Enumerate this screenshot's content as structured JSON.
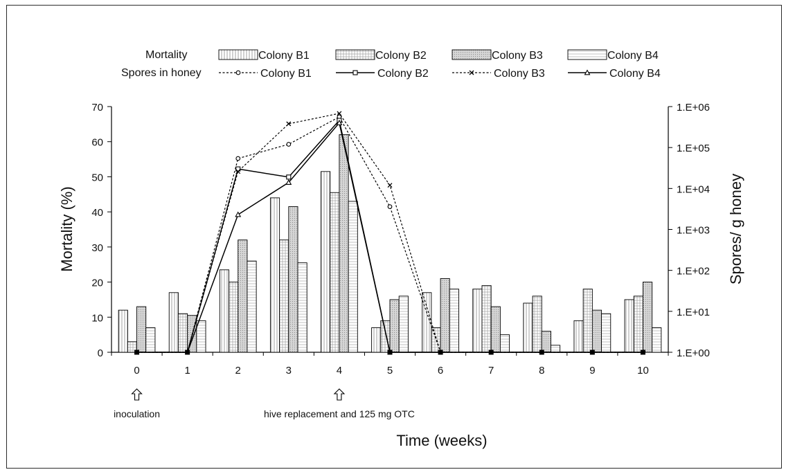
{
  "chart_data": {
    "type": "bar",
    "x_title": "Time (weeks)",
    "y_left_title": "Mortality (%)",
    "y_right_title": "Spores/ g honey",
    "categories": [
      "0",
      "1",
      "2",
      "3",
      "4",
      "5",
      "6",
      "7",
      "8",
      "9",
      "10"
    ],
    "y_left_ticks": [
      "0",
      "10",
      "20",
      "30",
      "40",
      "50",
      "60",
      "70"
    ],
    "y_left_range": [
      0,
      70
    ],
    "y_right_ticks": [
      "1.E+00",
      "1.E+01",
      "1.E+02",
      "1.E+03",
      "1.E+04",
      "1.E+05",
      "1.E+06"
    ],
    "y_right_scale": "log",
    "y_right_range": [
      1,
      1000000
    ],
    "legend": {
      "mortality_heading": "Mortality",
      "spores_heading": "Spores in honey"
    },
    "mortality_series": [
      {
        "name": "Colony B1",
        "fill": "#ffffff",
        "pattern": "vertical-lines",
        "values": [
          12,
          17,
          23.5,
          44,
          51.5,
          7,
          17,
          18,
          14,
          9,
          15
        ]
      },
      {
        "name": "Colony B2",
        "fill": "#ffffff",
        "pattern": "grid",
        "values": [
          3,
          11,
          20,
          32,
          45.5,
          9,
          7,
          19,
          16,
          18,
          16
        ]
      },
      {
        "name": "Colony B3",
        "fill": "#dcdcdc",
        "pattern": "dots",
        "values": [
          13,
          10.5,
          32,
          41.5,
          62,
          15,
          21,
          13,
          6,
          12,
          20
        ]
      },
      {
        "name": "Colony B4",
        "fill": "#ffffff",
        "pattern": "horizontal-lines",
        "values": [
          7,
          9,
          26,
          25.5,
          43,
          16,
          18,
          5,
          2,
          11,
          7
        ]
      }
    ],
    "spores_series": [
      {
        "name": "Colony B1",
        "line": "dotted",
        "marker": "circle",
        "values": [
          1,
          1,
          54000,
          120000,
          560000,
          3600,
          1,
          1,
          1,
          1,
          1
        ]
      },
      {
        "name": "Colony B2",
        "line": "solid",
        "marker": "square",
        "values": [
          1,
          1,
          30000,
          19000,
          460000,
          1,
          1,
          1,
          1,
          1,
          1
        ]
      },
      {
        "name": "Colony B3",
        "line": "dotted",
        "marker": "x",
        "values": [
          1,
          1,
          26000,
          380000,
          680000,
          12000,
          1,
          1,
          1,
          1,
          1
        ]
      },
      {
        "name": "Colony B4",
        "line": "solid",
        "marker": "triangle",
        "values": [
          1,
          1,
          2300,
          14000,
          400000,
          1,
          1,
          1,
          1,
          1,
          1
        ]
      }
    ],
    "annotations": [
      {
        "label": "inoculation",
        "at_week": "0"
      },
      {
        "label": "hive replacement and 125 mg OTC",
        "at_week": "4"
      }
    ]
  }
}
